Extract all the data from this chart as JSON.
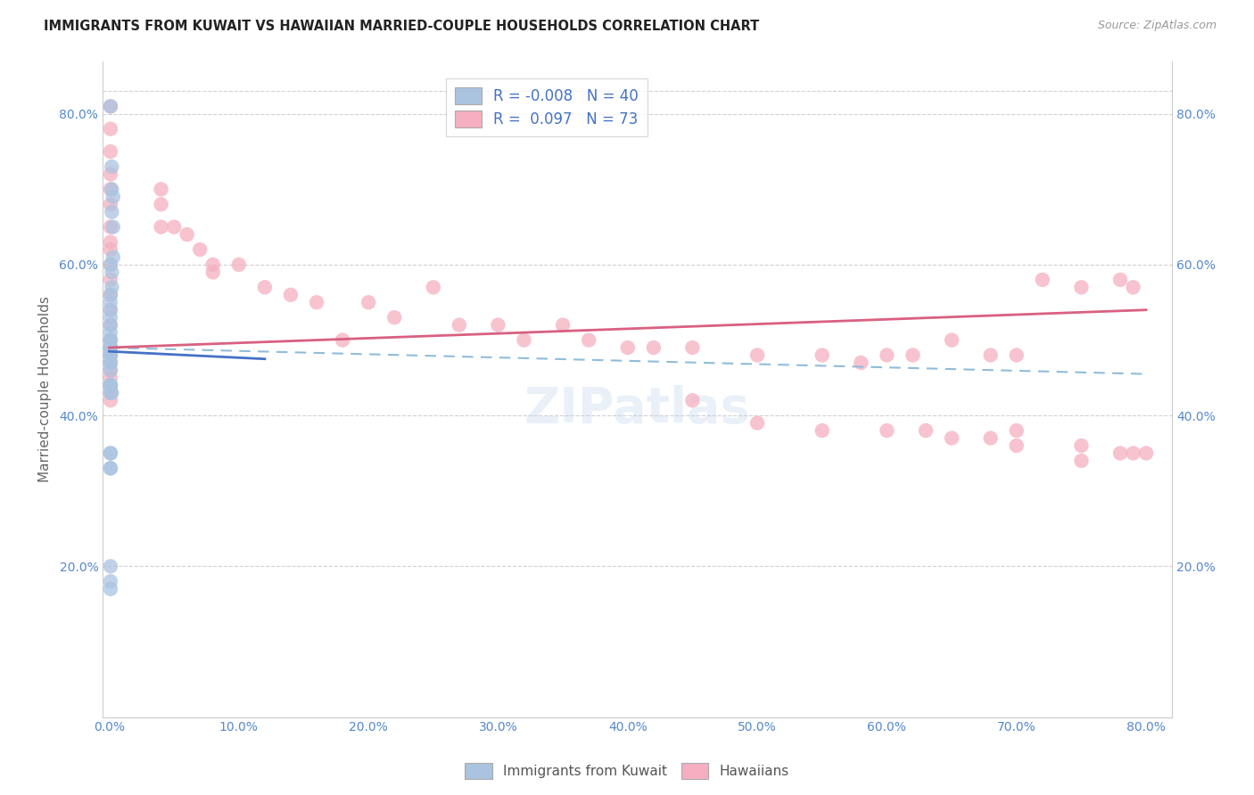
{
  "title": "IMMIGRANTS FROM KUWAIT VS HAWAIIAN MARRIED-COUPLE HOUSEHOLDS CORRELATION CHART",
  "source_text": "Source: ZipAtlas.com",
  "ylabel": "Married-couple Households",
  "blue_color": "#aac4e0",
  "pink_color": "#f5afc0",
  "blue_line_color": "#4472C4",
  "pink_line_color": "#d96080",
  "dashed_line_color": "#90bcd8",
  "watermark": "ZIPatlas",
  "legend_r_blue": "-0.008",
  "legend_n_blue": "40",
  "legend_r_pink": "0.097",
  "legend_n_pink": "73",
  "blue_scatter_x": [
    0.001,
    0.002,
    0.002,
    0.003,
    0.002,
    0.003,
    0.003,
    0.001,
    0.002,
    0.002,
    0.001,
    0.001,
    0.001,
    0.001,
    0.001,
    0.001,
    0.001,
    0.001,
    0.001,
    0.001,
    0.001,
    0.001,
    0.001,
    0.001,
    0.001,
    0.001,
    0.001,
    0.001,
    0.001,
    0.001,
    0.001,
    0.001,
    0.002,
    0.001,
    0.001,
    0.001,
    0.001,
    0.001,
    0.001,
    0.001
  ],
  "blue_scatter_y": [
    0.81,
    0.73,
    0.7,
    0.69,
    0.67,
    0.65,
    0.61,
    0.6,
    0.59,
    0.57,
    0.56,
    0.55,
    0.54,
    0.53,
    0.52,
    0.51,
    0.5,
    0.5,
    0.49,
    0.49,
    0.49,
    0.48,
    0.48,
    0.48,
    0.47,
    0.47,
    0.46,
    0.44,
    0.44,
    0.44,
    0.44,
    0.43,
    0.43,
    0.35,
    0.35,
    0.33,
    0.33,
    0.2,
    0.18,
    0.17
  ],
  "pink_scatter_x": [
    0.001,
    0.001,
    0.001,
    0.001,
    0.001,
    0.001,
    0.001,
    0.001,
    0.001,
    0.001,
    0.001,
    0.001,
    0.001,
    0.001,
    0.001,
    0.001,
    0.001,
    0.001,
    0.001,
    0.001,
    0.001,
    0.001,
    0.001,
    0.04,
    0.04,
    0.04,
    0.05,
    0.06,
    0.07,
    0.08,
    0.08,
    0.1,
    0.12,
    0.14,
    0.16,
    0.18,
    0.2,
    0.22,
    0.25,
    0.27,
    0.3,
    0.32,
    0.35,
    0.37,
    0.4,
    0.42,
    0.45,
    0.5,
    0.55,
    0.58,
    0.6,
    0.62,
    0.65,
    0.68,
    0.7,
    0.72,
    0.75,
    0.78,
    0.79,
    0.65,
    0.7,
    0.45,
    0.5,
    0.55,
    0.6,
    0.63,
    0.68,
    0.7,
    0.75,
    0.79,
    0.8,
    0.78,
    0.75
  ],
  "pink_scatter_y": [
    0.81,
    0.78,
    0.75,
    0.72,
    0.7,
    0.68,
    0.65,
    0.63,
    0.62,
    0.6,
    0.58,
    0.56,
    0.54,
    0.52,
    0.5,
    0.49,
    0.48,
    0.47,
    0.46,
    0.45,
    0.44,
    0.43,
    0.42,
    0.7,
    0.68,
    0.65,
    0.65,
    0.64,
    0.62,
    0.6,
    0.59,
    0.6,
    0.57,
    0.56,
    0.55,
    0.5,
    0.55,
    0.53,
    0.57,
    0.52,
    0.52,
    0.5,
    0.52,
    0.5,
    0.49,
    0.49,
    0.49,
    0.48,
    0.48,
    0.47,
    0.48,
    0.48,
    0.5,
    0.48,
    0.48,
    0.58,
    0.57,
    0.58,
    0.57,
    0.37,
    0.38,
    0.42,
    0.39,
    0.38,
    0.38,
    0.38,
    0.37,
    0.36,
    0.36,
    0.35,
    0.35,
    0.35,
    0.34
  ],
  "blue_line_x0": 0.0,
  "blue_line_x1": 0.12,
  "blue_line_y0": 0.485,
  "blue_line_y1": 0.475,
  "dashed_line_x0": 0.0,
  "dashed_line_x1": 0.8,
  "dashed_line_y0": 0.49,
  "dashed_line_y1": 0.455,
  "pink_line_x0": 0.0,
  "pink_line_x1": 0.8,
  "pink_line_y0": 0.49,
  "pink_line_y1": 0.54,
  "xlim": [
    -0.005,
    0.82
  ],
  "ylim": [
    0.0,
    0.87
  ],
  "xticks": [
    0.0,
    0.1,
    0.2,
    0.3,
    0.4,
    0.5,
    0.6,
    0.7,
    0.8
  ],
  "yticks": [
    0.2,
    0.4,
    0.6,
    0.8
  ],
  "grid_color": "#d0d0d0",
  "tick_color": "#5588cc"
}
